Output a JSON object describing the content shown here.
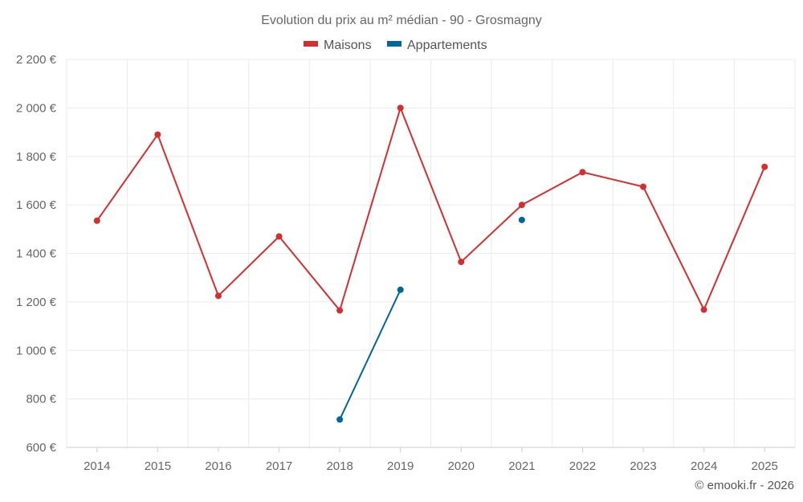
{
  "chart_data": {
    "type": "line",
    "title": "Evolution du prix au m² médian - 90 - Grosmagny",
    "categories": [
      "2014",
      "2015",
      "2016",
      "2017",
      "2018",
      "2019",
      "2020",
      "2021",
      "2022",
      "2023",
      "2024",
      "2025"
    ],
    "ylim": [
      600,
      2200
    ],
    "yticks": [
      600,
      800,
      1000,
      1200,
      1400,
      1600,
      1800,
      2000,
      2200
    ],
    "ytick_labels": [
      "600 €",
      "800 €",
      "1 000 €",
      "1 200 €",
      "1 400 €",
      "1 600 €",
      "1 800 €",
      "2 000 €",
      "2 200 €"
    ],
    "grid": true,
    "legend_position": "top-center",
    "series": [
      {
        "name": "Maisons",
        "color": "#d32f2f",
        "values": [
          1535,
          1890,
          1225,
          1470,
          1165,
          2000,
          1365,
          1600,
          1735,
          1675,
          1168,
          1757
        ]
      },
      {
        "name": "Appartements",
        "color": "#01669a",
        "values": [
          null,
          null,
          null,
          null,
          715,
          1250,
          null,
          1538,
          null,
          null,
          null,
          null
        ]
      }
    ]
  },
  "credit": "© emooki.fr - 2026"
}
